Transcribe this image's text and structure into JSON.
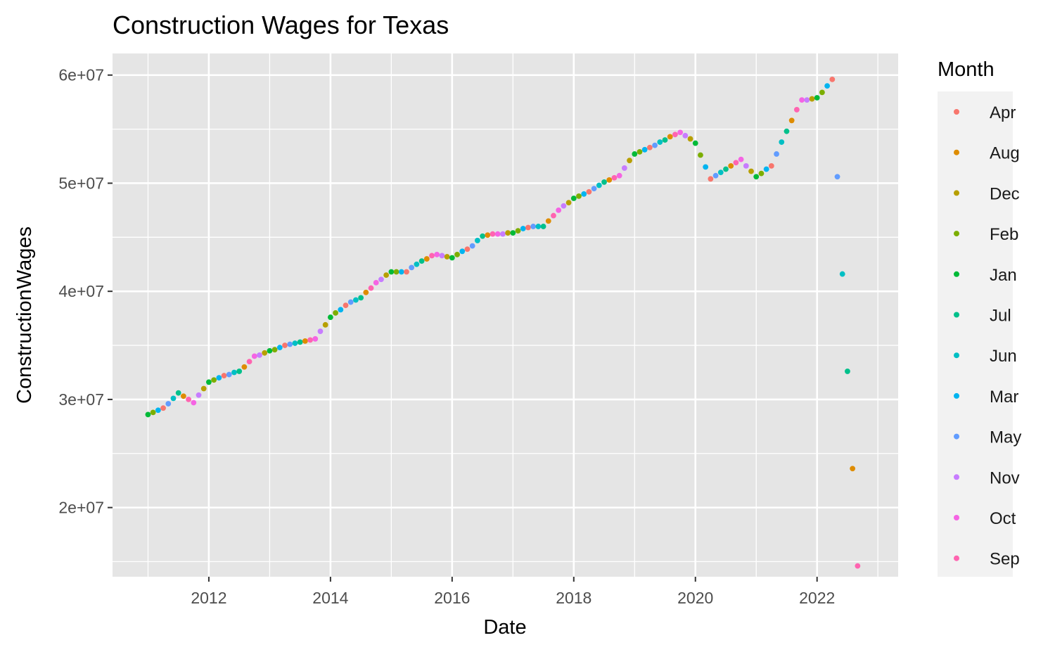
{
  "chart_data": {
    "type": "scatter",
    "title": "Construction Wages for Texas",
    "xlabel": "Date",
    "ylabel": "ConstructionWages",
    "x_axis": "date",
    "xlim": [
      "2010-06-01",
      "2023-05-01"
    ],
    "ylim": [
      13600000,
      62000000
    ],
    "x_ticks": [
      "2012",
      "2014",
      "2016",
      "2018",
      "2020",
      "2022"
    ],
    "y_ticks": [
      {
        "value": 20000000,
        "label": "2e+07"
      },
      {
        "value": 30000000,
        "label": "3e+07"
      },
      {
        "value": 40000000,
        "label": "4e+07"
      },
      {
        "value": 50000000,
        "label": "5e+07"
      },
      {
        "value": 60000000,
        "label": "6e+07"
      }
    ],
    "grid": true,
    "background": "#e5e5e5",
    "legend": {
      "title": "Month",
      "position": "right",
      "entries": [
        {
          "label": "Apr",
          "color": "#F8766D"
        },
        {
          "label": "Aug",
          "color": "#DE8C00"
        },
        {
          "label": "Dec",
          "color": "#B79F00"
        },
        {
          "label": "Feb",
          "color": "#7CAE00"
        },
        {
          "label": "Jan",
          "color": "#00BA38"
        },
        {
          "label": "Jul",
          "color": "#00C08B"
        },
        {
          "label": "Jun",
          "color": "#00BFC4"
        },
        {
          "label": "Mar",
          "color": "#00B4F0"
        },
        {
          "label": "May",
          "color": "#619CFF"
        },
        {
          "label": "Nov",
          "color": "#C77CFF"
        },
        {
          "label": "Oct",
          "color": "#F564E3"
        },
        {
          "label": "Sep",
          "color": "#FF64B0"
        }
      ]
    },
    "series": [
      {
        "start": "2011-01",
        "values": [
          28600000,
          28800000,
          29000000,
          29200000,
          29600000,
          30100000,
          30600000,
          30300000,
          30000000,
          29700000,
          30400000,
          31000000,
          31600000,
          31800000,
          32000000,
          32200000,
          32300000,
          32500000,
          32600000,
          33000000,
          33500000,
          34000000,
          34100000,
          34300000,
          34500000,
          34600000,
          34800000,
          35000000,
          35100000,
          35200000,
          35300000,
          35400000,
          35500000,
          35600000,
          36300000,
          36900000,
          37600000,
          38000000,
          38300000,
          38700000,
          39000000,
          39200000,
          39400000,
          39900000,
          40300000,
          40800000,
          41100000,
          41500000,
          41800000,
          41800000,
          41800000,
          41800000,
          42200000,
          42500000,
          42800000,
          43000000,
          43300000,
          43400000,
          43300000,
          43200000,
          43100000,
          43400000,
          43700000,
          43900000,
          44200000,
          44700000,
          45100000,
          45200000,
          45300000,
          45300000,
          45300000,
          45400000,
          45400000,
          45600000,
          45800000,
          45900000,
          46000000,
          46000000,
          46000000,
          46500000,
          47000000,
          47500000,
          47900000,
          48200000,
          48600000,
          48800000,
          49000000,
          49200000,
          49500000,
          49800000,
          50100000,
          50300000,
          50500000,
          50700000,
          51400000,
          52100000,
          52700000,
          52900000,
          53100000,
          53300000,
          53500000,
          53800000,
          54000000,
          54300000,
          54500000,
          54700000,
          54400000,
          54100000,
          53700000,
          52600000,
          51500000,
          50400000,
          50700000,
          51000000,
          51300000,
          51600000,
          51900000,
          52200000,
          51600000,
          51100000,
          50600000,
          50900000,
          51300000,
          51600000,
          52700000,
          53800000,
          54800000,
          55800000,
          56800000,
          57700000,
          57700000,
          57800000,
          57900000,
          58400000,
          59000000,
          59600000,
          50600000,
          41600000,
          32600000,
          23600000,
          14600000
        ]
      }
    ]
  }
}
